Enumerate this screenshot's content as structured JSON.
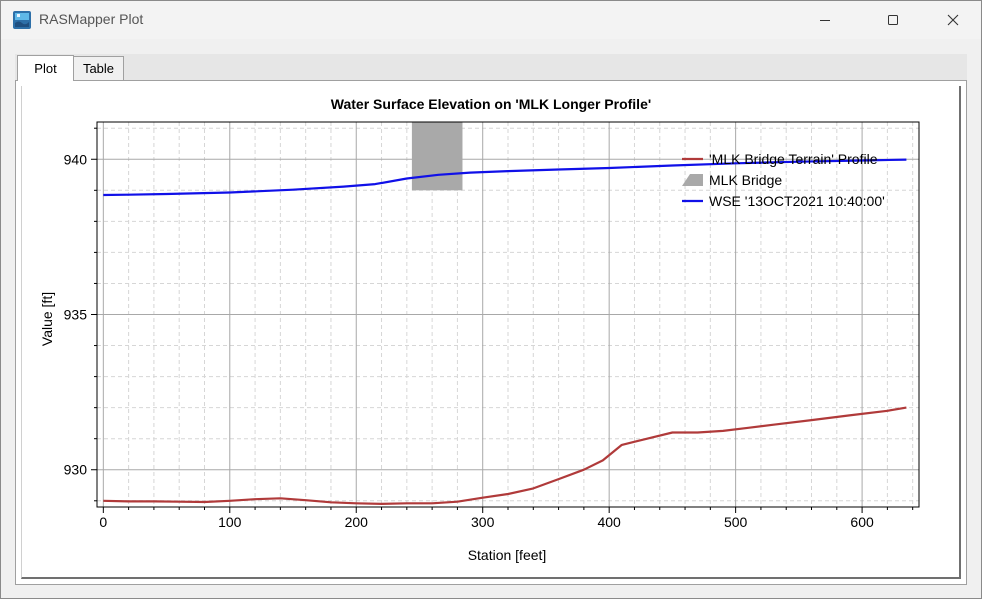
{
  "window": {
    "title": "RASMapper Plot",
    "icon": "rasmapper-app-icon",
    "controls": {
      "minimize": "minimize-icon",
      "maximize": "maximize-icon",
      "close": "close-icon"
    }
  },
  "tabs": [
    {
      "label": "Plot",
      "active": true
    },
    {
      "label": "Table",
      "active": false
    }
  ],
  "chart_data": {
    "type": "line",
    "title": "Water Surface Elevation on 'MLK Longer Profile'",
    "xlabel": "Station [feet]",
    "ylabel": "Value [ft]",
    "xlim": [
      -5,
      645
    ],
    "ylim": [
      928.8,
      941.2
    ],
    "xticks": [
      0,
      100,
      200,
      300,
      400,
      500,
      600
    ],
    "yticks": [
      930,
      935,
      940
    ],
    "grid": true,
    "legend_position": "top-right",
    "series": [
      {
        "name": "'MLK Bridge Terrain' Profile",
        "kind": "line",
        "color": "#b03a3a",
        "x": [
          0,
          20,
          40,
          60,
          80,
          100,
          120,
          140,
          160,
          180,
          200,
          220,
          240,
          260,
          280,
          300,
          320,
          340,
          360,
          380,
          395,
          410,
          430,
          450,
          470,
          490,
          510,
          530,
          560,
          590,
          620,
          635
        ],
        "y": [
          929.0,
          928.98,
          928.98,
          928.97,
          928.96,
          929.0,
          929.05,
          929.08,
          929.02,
          928.95,
          928.92,
          928.9,
          928.92,
          928.92,
          928.97,
          929.1,
          929.22,
          929.4,
          929.7,
          930.0,
          930.3,
          930.8,
          931.0,
          931.2,
          931.2,
          931.25,
          931.35,
          931.45,
          931.6,
          931.75,
          931.9,
          932.0
        ]
      },
      {
        "name": "MLK Bridge",
        "kind": "band",
        "color": "#a9a9a9",
        "x": [
          244,
          284
        ],
        "y": [
          939.0,
          941.2
        ]
      },
      {
        "name": "WSE '13OCT2021 10:40:00'",
        "kind": "line",
        "color": "#1010e8",
        "x": [
          0,
          20,
          50,
          100,
          150,
          190,
          215,
          240,
          265,
          290,
          320,
          360,
          400,
          450,
          500,
          550,
          600,
          635
        ],
        "y": [
          938.85,
          938.86,
          938.88,
          938.93,
          939.02,
          939.12,
          939.2,
          939.38,
          939.5,
          939.57,
          939.62,
          939.67,
          939.72,
          939.8,
          939.87,
          939.92,
          939.96,
          939.99
        ]
      }
    ]
  }
}
